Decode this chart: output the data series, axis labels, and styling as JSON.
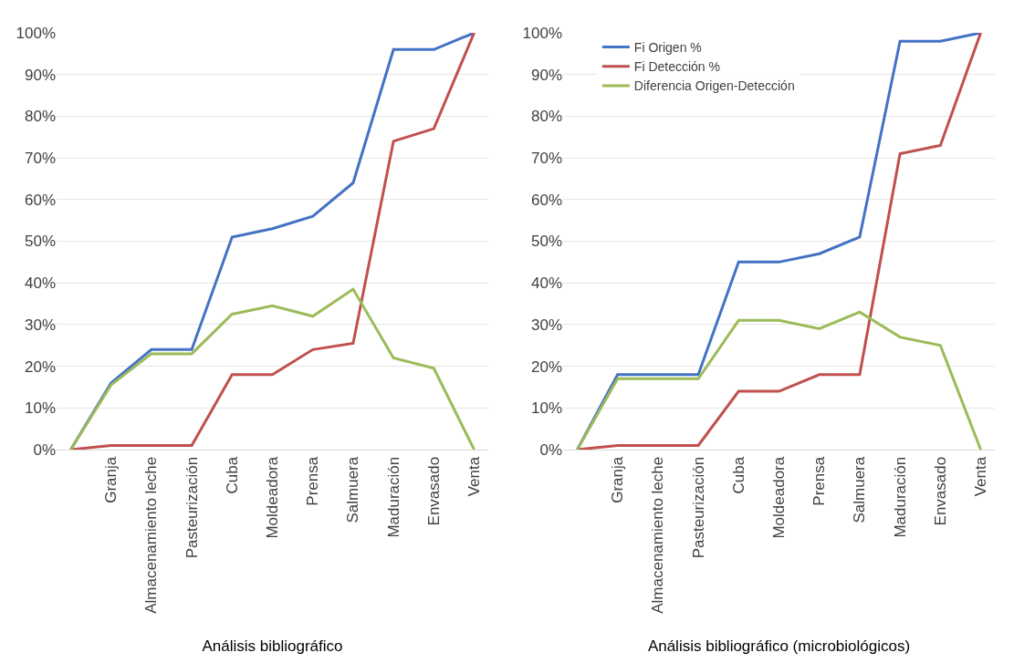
{
  "chart_data": [
    {
      "type": "line",
      "xlabel": "Análisis bibliográfico",
      "categories": [
        null,
        "Granja",
        "Almacenamiento leche",
        "Pasteurización",
        "Cuba",
        "Moldeadora",
        "Prensa",
        "Salmuera",
        "Maduración",
        "Envasado",
        "Venta"
      ],
      "series": [
        {
          "color": "#4472c4",
          "values": [
            0,
            16,
            24,
            24,
            51,
            53,
            56,
            64,
            96,
            96,
            100
          ]
        },
        {
          "color": "#c0504d",
          "values": [
            0,
            1,
            1,
            1,
            18,
            18,
            24,
            25.5,
            74,
            77,
            100
          ]
        },
        {
          "color": "#9bbb59",
          "values": [
            0,
            15.5,
            23,
            23,
            32.5,
            34.5,
            32,
            38.5,
            22,
            19.5,
            0
          ]
        }
      ],
      "ylim": [
        0,
        100
      ],
      "yticks": [
        {
          "value": 0,
          "label": "0%"
        },
        {
          "value": 10,
          "label": "10%"
        },
        {
          "value": 20,
          "label": "20%"
        },
        {
          "value": 30,
          "label": "30%"
        },
        {
          "value": 40,
          "label": "40%"
        },
        {
          "value": 50,
          "label": "50%"
        },
        {
          "value": 60,
          "label": "60%"
        },
        {
          "value": 70,
          "label": "70%"
        },
        {
          "value": 80,
          "label": "80%"
        },
        {
          "value": 90,
          "label": "90%"
        },
        {
          "value": 100,
          "label": "100%"
        }
      ],
      "grid": "y",
      "legend": false,
      "marker": "none",
      "line_style": "solid"
    },
    {
      "type": "line",
      "xlabel": "Análisis bibliográfico (microbiológicos)",
      "categories": [
        null,
        "Granja",
        "Almacenamiento leche",
        "Pasteurización",
        "Cuba",
        "Moldeadora",
        "Prensa",
        "Salmuera",
        "Maduración",
        "Envasado",
        "Venta"
      ],
      "series": [
        {
          "name": "Fi Origen %",
          "color": "#4472c4",
          "values": [
            0,
            18,
            18,
            18,
            45,
            45,
            47,
            51,
            98,
            98,
            100
          ]
        },
        {
          "name": "Fi Detección %",
          "color": "#c0504d",
          "values": [
            0,
            1,
            1,
            1,
            14,
            14,
            18,
            18,
            71,
            73,
            100
          ]
        },
        {
          "name": "Diferencia Origen-Detección",
          "color": "#9bbb59",
          "values": [
            0,
            17,
            17,
            17,
            31,
            31,
            29,
            33,
            27,
            25,
            0
          ]
        }
      ],
      "ylim": [
        0,
        100
      ],
      "yticks": [
        {
          "value": 0,
          "label": "0%"
        },
        {
          "value": 10,
          "label": "10%"
        },
        {
          "value": 20,
          "label": "20%"
        },
        {
          "value": 30,
          "label": "30%"
        },
        {
          "value": 40,
          "label": "40%"
        },
        {
          "value": 50,
          "label": "50%"
        },
        {
          "value": 60,
          "label": "60%"
        },
        {
          "value": 70,
          "label": "70%"
        },
        {
          "value": 80,
          "label": "80%"
        },
        {
          "value": 90,
          "label": "90%"
        },
        {
          "value": 100,
          "label": "100%"
        }
      ],
      "grid": "y",
      "legend": "top left",
      "marker": "none",
      "line_style": "solid"
    }
  ]
}
